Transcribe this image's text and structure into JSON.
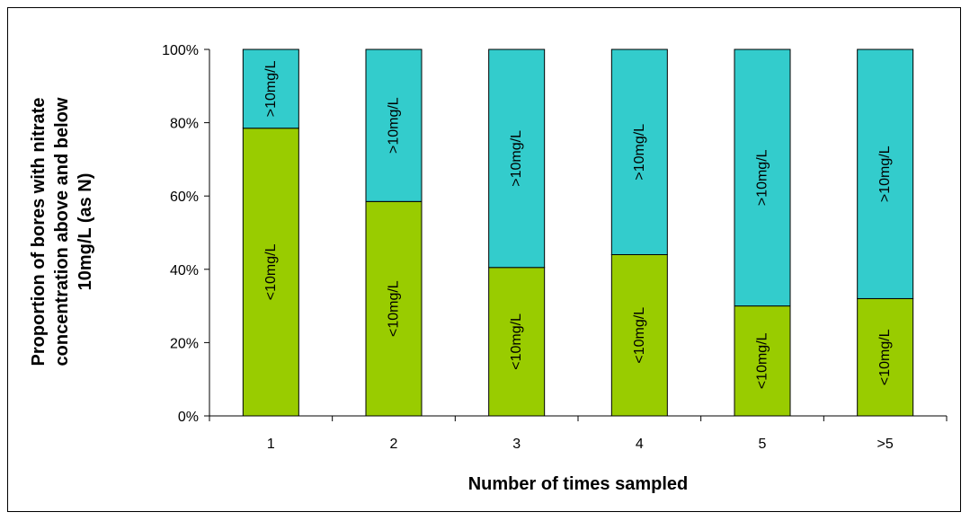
{
  "chart_data": {
    "type": "bar",
    "stacked": true,
    "percent": true,
    "categories": [
      "1",
      "2",
      "3",
      "4",
      "5",
      ">5"
    ],
    "series": [
      {
        "name": "<10mg/L",
        "color": "#99cc00",
        "values": [
          78.5,
          58.5,
          40.5,
          44,
          30,
          32
        ]
      },
      {
        "name": ">10mg/L",
        "color": "#33cccc",
        "values": [
          21.5,
          41.5,
          59.5,
          56,
          70,
          68
        ]
      }
    ],
    "segment_labels": [
      "<10mg/L",
      ">10mg/L"
    ],
    "yticks": [
      "0%",
      "20%",
      "40%",
      "60%",
      "80%",
      "100%"
    ],
    "ylim": [
      0,
      100
    ],
    "xlabel": "Number of times sampled",
    "ylabel_lines": [
      "Proportion of bores with nitrate",
      "concentration above and below",
      "10mg/L (as N)"
    ],
    "title": "",
    "grid": false,
    "legend": "none"
  }
}
